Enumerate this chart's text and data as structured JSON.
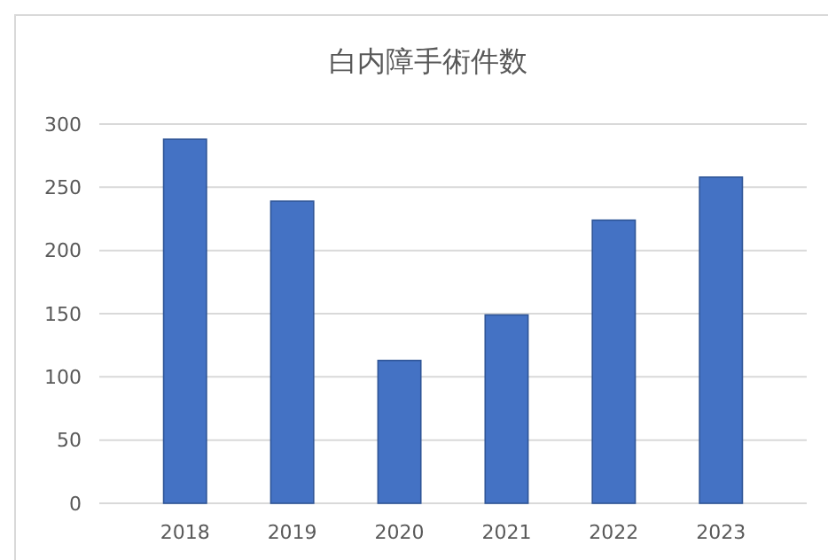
{
  "chart_data": {
    "type": "bar",
    "title": "白内障手術件数",
    "categories": [
      "2018",
      "2019",
      "2020",
      "2021",
      "2022",
      "2023"
    ],
    "values": [
      288,
      239,
      113,
      149,
      224,
      258
    ],
    "color": "#4472c4",
    "ylim": [
      0,
      300
    ],
    "yticks": [
      0,
      50,
      100,
      150,
      200,
      250,
      300
    ],
    "grid": "y"
  }
}
